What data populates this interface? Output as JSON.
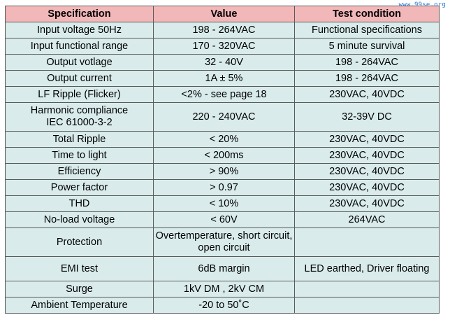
{
  "watermark": "www.99se.org",
  "headers": [
    "Specification",
    "Value",
    "Test condition"
  ],
  "rows": [
    {
      "spec": "Input voltage 50Hz",
      "value": "198 - 264VAC",
      "condition": "Functional specifications"
    },
    {
      "spec": "Input functional range",
      "value": "170 - 320VAC",
      "condition": "5 minute survival"
    },
    {
      "spec": "Output votlage",
      "value": "32 - 40V",
      "condition": "198 - 264VAC"
    },
    {
      "spec": "Output current",
      "value": "1A ± 5%",
      "condition": "198 - 264VAC"
    },
    {
      "spec": "LF Ripple (Flicker)",
      "value": "<2% - see page 18",
      "condition": "230VAC, 40VDC"
    },
    {
      "spec": "Harmonic compliance\nIEC 61000-3-2",
      "value": "220 - 240VAC",
      "condition": "32-39V DC"
    },
    {
      "spec": "Total Ripple",
      "value": "< 20%",
      "condition": "230VAC, 40VDC"
    },
    {
      "spec": "Time to light",
      "value": "< 200ms",
      "condition": "230VAC, 40VDC"
    },
    {
      "spec": "Efficiency",
      "value": "> 90%",
      "condition": "230VAC, 40VDC"
    },
    {
      "spec": "Power factor",
      "value": "> 0.97",
      "condition": "230VAC, 40VDC"
    },
    {
      "spec": "THD",
      "value": "< 10%",
      "condition": "230VAC, 40VDC"
    },
    {
      "spec": "No-load voltage",
      "value": "< 60V",
      "condition": "264VAC"
    },
    {
      "spec": "Protection",
      "value": "Overtemperature, short circuit,\nopen circuit",
      "condition": ""
    },
    {
      "spec": "EMI test",
      "value": "6dB margin",
      "condition": "LED earthed, Driver floating"
    },
    {
      "spec": "Surge",
      "value": "1kV DM , 2kV CM",
      "condition": ""
    },
    {
      "spec": "Ambient Temperature",
      "value": "-20 to 50˚C",
      "condition": ""
    }
  ]
}
